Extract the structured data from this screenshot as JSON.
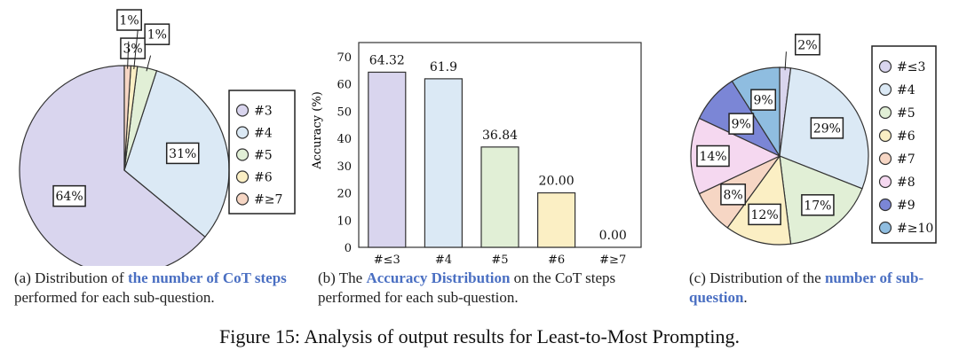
{
  "figure_caption": "Figure 15: Analysis of output results for Least-to-Most Prompting.",
  "captions": {
    "a": {
      "pre": "(a) Distribution of ",
      "hl": "the number of CoT steps",
      "post": " performed for each sub-question."
    },
    "b": {
      "pre": "(b) The ",
      "hl": "Accuracy Distribution",
      "post": " on the CoT steps performed for each sub-question."
    },
    "c": {
      "pre": "(c) Distribution of the ",
      "hl": "number of sub-question",
      "post": "."
    }
  },
  "chart_data": [
    {
      "type": "pie",
      "labels": [
        "#3",
        "#4",
        "#5",
        "#6",
        "#≥7"
      ],
      "values": [
        64,
        31,
        3,
        1,
        1
      ],
      "value_labels": [
        "64%",
        "31%",
        "3%",
        "1%",
        "1%"
      ],
      "colors": [
        "#d9d5ee",
        "#dbe9f5",
        "#e1efd6",
        "#fbefc4",
        "#f6d6c4"
      ],
      "legend_position": "right"
    },
    {
      "type": "bar",
      "categories": [
        "#≤3",
        "#4",
        "#5",
        "#6",
        "#≥7"
      ],
      "values": [
        64.32,
        61.9,
        36.84,
        20.0,
        0.0
      ],
      "value_labels": [
        "64.32",
        "61.9",
        "36.84",
        "20.00",
        "0.00"
      ],
      "colors": [
        "#d9d5ee",
        "#dbe9f5",
        "#e1efd6",
        "#fbefc4",
        "#f6d6c4"
      ],
      "ylabel": "Accuracy (%)",
      "ylim": [
        0,
        70
      ],
      "yticks": [
        "0",
        "10",
        "20",
        "30",
        "40",
        "50",
        "60",
        "70"
      ]
    },
    {
      "type": "pie",
      "labels": [
        "#≤3",
        "#4",
        "#5",
        "#6",
        "#7",
        "#8",
        "#9",
        "#≥10"
      ],
      "values": [
        2,
        29,
        17,
        12,
        8,
        14,
        9,
        9
      ],
      "value_labels": [
        "2%",
        "29%",
        "17%",
        "12%",
        "8%",
        "14%",
        "9%",
        "9%"
      ],
      "colors": [
        "#d9d5ee",
        "#dbe9f5",
        "#e1efd6",
        "#fbefc4",
        "#f6d6c4",
        "#f5d8f0",
        "#7b86d6",
        "#8fbde0"
      ],
      "legend_position": "right"
    }
  ]
}
